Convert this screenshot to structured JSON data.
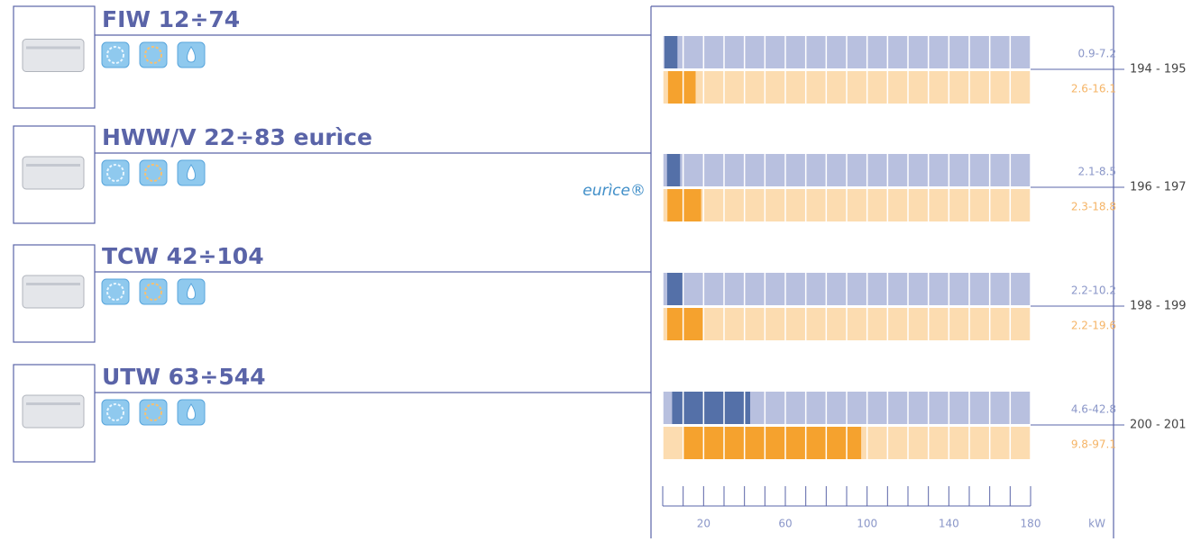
{
  "chart_data": {
    "type": "range-bar",
    "categories": [
      "FIW 12÷74",
      "HWW/V 22÷83 eurìce",
      "TCW 42÷104",
      "UTW 63÷544"
    ],
    "pages": [
      "194 - 195",
      "196 - 197",
      "198 - 199",
      "200 - 201"
    ],
    "annotation": "eurìce®",
    "series": [
      {
        "color": "#5470a8",
        "background": "#b8c0df",
        "label_color": "#8a96c8",
        "low": [
          0.9,
          2.1,
          2.2,
          4.6
        ],
        "high": [
          7.2,
          8.5,
          10.2,
          42.8
        ],
        "value_labels": [
          "0.9-7.2",
          "2.1-8.5",
          "2.2-10.2",
          "4.6-42.8"
        ]
      },
      {
        "color": "#f5a22e",
        "background": "#fcdcb0",
        "label_color": "#f5b466",
        "low": [
          2.6,
          2.3,
          2.2,
          9.8
        ],
        "high": [
          16.1,
          18.8,
          19.6,
          97.1
        ],
        "value_labels": [
          "2.6-16.1",
          "2.3-18.8",
          "2.2-19.6",
          "9.8-97.1"
        ]
      }
    ],
    "xlabel": "kW",
    "xlim": [
      0,
      180
    ],
    "xticks": [
      20,
      60,
      100,
      140,
      180
    ],
    "xminorticks": [
      0,
      10,
      20,
      30,
      40,
      50,
      60,
      70,
      80,
      90,
      100,
      110,
      120,
      130,
      140,
      150,
      160,
      170,
      180
    ]
  }
}
